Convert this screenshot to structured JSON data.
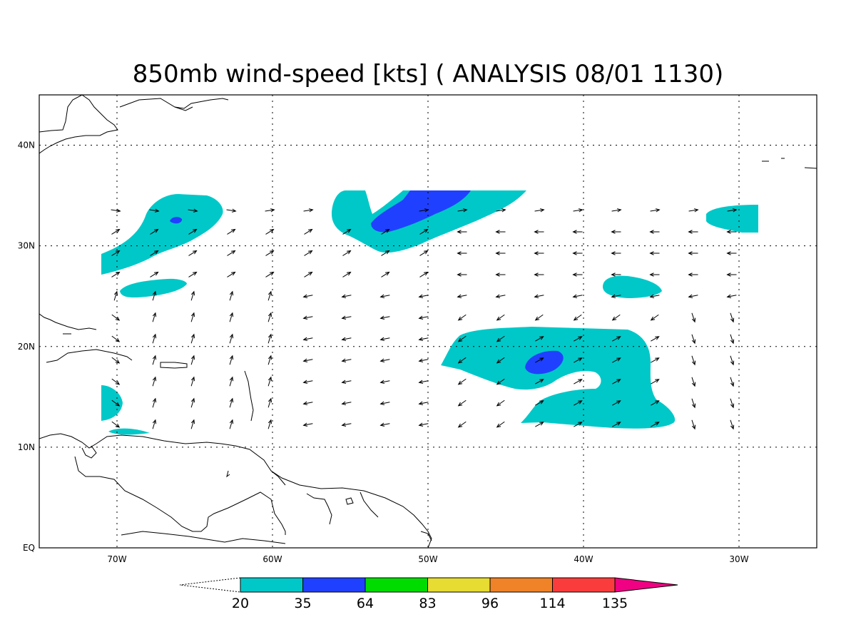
{
  "title": "850mb wind-speed [kts] ( ANALYSIS 08/01 1130)",
  "map": {
    "lon_range": [
      -75,
      -25
    ],
    "lat_range": [
      0,
      45
    ],
    "x_ticks": [
      {
        "lon": -70,
        "label": "70W"
      },
      {
        "lon": -60,
        "label": "60W"
      },
      {
        "lon": -50,
        "label": "50W"
      },
      {
        "lon": -40,
        "label": "40W"
      },
      {
        "lon": -30,
        "label": "30W"
      }
    ],
    "y_ticks": [
      {
        "lat": 40,
        "label": "40N"
      },
      {
        "lat": 30,
        "label": "30N"
      },
      {
        "lat": 20,
        "label": "20N"
      },
      {
        "lat": 10,
        "label": "10N"
      },
      {
        "lat": 0,
        "label": "EQ"
      }
    ],
    "grid": "dotted"
  },
  "colorbar": {
    "colors": [
      "#00c8c8",
      "#2040ff",
      "#00dc00",
      "#e6dc32",
      "#f08228",
      "#fa3c3c",
      "#f00082"
    ],
    "labels": [
      "20",
      "35",
      "64",
      "83",
      "96",
      "114",
      "135"
    ]
  },
  "wind_regions": [
    {
      "level": "20-35",
      "color": "#00c8c8",
      "area": "NW Atlantic near 30N 67W"
    },
    {
      "level": "20-35",
      "color": "#00c8c8",
      "area": "central Atlantic near 33N 52W"
    },
    {
      "level": "35-64",
      "color": "#2040ff",
      "area": "central Atlantic near 33N 50W"
    },
    {
      "level": "20-35",
      "color": "#00c8c8",
      "area": "tropical Atlantic near 18N 40W"
    },
    {
      "level": "35-64",
      "color": "#2040ff",
      "area": "tropical Atlantic near 18N 42W"
    },
    {
      "level": "20-35",
      "color": "#00c8c8",
      "area": "near 26N 37W"
    },
    {
      "level": "20-35",
      "color": "#00c8c8",
      "area": "near 33N 30W"
    }
  ]
}
